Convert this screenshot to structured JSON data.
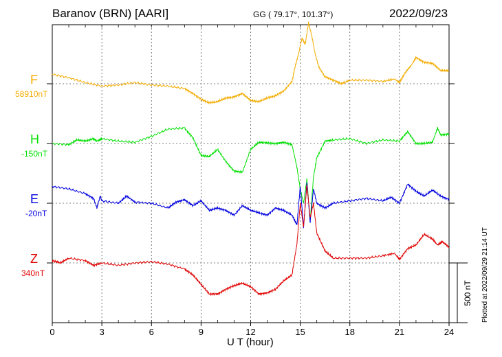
{
  "header": {
    "station": "Baranov (BRN)  [AARI]",
    "coords": "GG ( 79.17°, 101.37°)",
    "date": "2022/09/23"
  },
  "footer": {
    "plotted": "Plotted at 2022/09/29 21:14 UT"
  },
  "chart_data": {
    "type": "line",
    "xlabel": "U T (hour)",
    "x_ticks": [
      0,
      3,
      6,
      9,
      12,
      15,
      18,
      21,
      24
    ],
    "xlim": [
      0,
      24
    ],
    "scale_label": "500 nT",
    "scale_nT": 500,
    "series": [
      {
        "name": "F",
        "baseline_label": "58910nT",
        "color": "#f4ac00",
        "x": [
          0,
          1,
          2,
          3,
          4,
          5,
          6,
          7,
          8,
          8.5,
          9,
          9.5,
          10,
          10.5,
          11,
          11.5,
          12,
          12.5,
          13,
          13.5,
          14,
          14.5,
          14.7,
          14.9,
          15.1,
          15.3,
          15.5,
          15.7,
          15.9,
          16.1,
          16.5,
          17,
          17.5,
          18,
          19,
          20,
          20.7,
          21,
          21.3,
          21.7,
          22,
          22.5,
          23,
          23.5,
          24
        ],
        "values": [
          80,
          50,
          10,
          -20,
          -10,
          10,
          -10,
          -20,
          -40,
          -80,
          -130,
          -160,
          -150,
          -120,
          -110,
          -80,
          -140,
          -150,
          -120,
          -100,
          -60,
          20,
          150,
          250,
          380,
          330,
          510,
          400,
          250,
          150,
          60,
          30,
          0,
          30,
          30,
          20,
          40,
          10,
          80,
          150,
          220,
          180,
          170,
          110,
          110
        ]
      },
      {
        "name": "H",
        "baseline_label": "-150nT",
        "color": "#00e000",
        "x": [
          0,
          1,
          1.5,
          2,
          2.5,
          2.7,
          3,
          4,
          5,
          6,
          7,
          8,
          8.5,
          9,
          9.5,
          10,
          10.5,
          11,
          11.5,
          12,
          12.5,
          13,
          13.5,
          14,
          14.5,
          14.8,
          15,
          15.2,
          15.4,
          15.6,
          15.8,
          16,
          16.5,
          17,
          18,
          19,
          20,
          21,
          21.5,
          22,
          22.5,
          23,
          23.3,
          23.5,
          24
        ],
        "values": [
          0,
          -10,
          30,
          20,
          40,
          20,
          40,
          20,
          10,
          60,
          120,
          130,
          50,
          -100,
          -110,
          -50,
          -150,
          -230,
          -240,
          -50,
          10,
          5,
          0,
          10,
          -10,
          -200,
          -380,
          -500,
          -300,
          -650,
          -280,
          -120,
          20,
          30,
          40,
          0,
          30,
          20,
          100,
          0,
          0,
          10,
          130,
          70,
          80
        ]
      },
      {
        "name": "E",
        "baseline_label": "-20nT",
        "color": "#0000e0",
        "x": [
          0,
          1,
          2,
          2.5,
          2.7,
          2.9,
          3,
          4,
          4.5,
          5,
          6,
          7,
          7.5,
          8,
          8.5,
          9,
          9.5,
          10,
          10.5,
          11,
          11.5,
          12,
          12.5,
          13,
          13.5,
          14,
          14.5,
          14.8,
          15,
          15.2,
          15.4,
          15.6,
          15.8,
          16,
          16.5,
          17,
          18,
          19,
          20,
          20.5,
          21,
          21.5,
          22,
          22.5,
          23,
          23.5,
          24
        ],
        "values": [
          140,
          120,
          80,
          40,
          -40,
          60,
          20,
          0,
          60,
          10,
          0,
          -40,
          10,
          30,
          -20,
          20,
          -60,
          -40,
          -60,
          -100,
          -20,
          -60,
          -80,
          -100,
          -40,
          -60,
          -100,
          -180,
          140,
          -200,
          180,
          -160,
          120,
          0,
          -40,
          0,
          20,
          40,
          20,
          50,
          0,
          160,
          100,
          60,
          110,
          60,
          30
        ]
      },
      {
        "name": "Z",
        "baseline_label": "340nT",
        "color": "#e00000",
        "x": [
          0,
          0.5,
          1,
          2,
          2.5,
          3,
          4,
          5,
          6,
          7,
          8,
          8.5,
          9,
          9.5,
          10,
          10.5,
          11,
          11.5,
          12,
          12.5,
          13,
          13.5,
          14,
          14.5,
          14.8,
          15,
          15.2,
          15.4,
          15.6,
          15.8,
          16,
          16.5,
          17,
          18,
          19,
          20,
          20.7,
          21,
          21.5,
          22,
          22.5,
          23,
          23.3,
          23.6,
          24
        ],
        "values": [
          20,
          0,
          40,
          20,
          -20,
          0,
          -20,
          0,
          10,
          -10,
          -50,
          -100,
          -180,
          -260,
          -260,
          -220,
          -190,
          -170,
          -200,
          -260,
          -250,
          -220,
          -150,
          -100,
          160,
          500,
          300,
          650,
          380,
          500,
          250,
          100,
          40,
          40,
          40,
          60,
          80,
          30,
          120,
          150,
          240,
          200,
          150,
          180,
          130
        ]
      }
    ]
  }
}
